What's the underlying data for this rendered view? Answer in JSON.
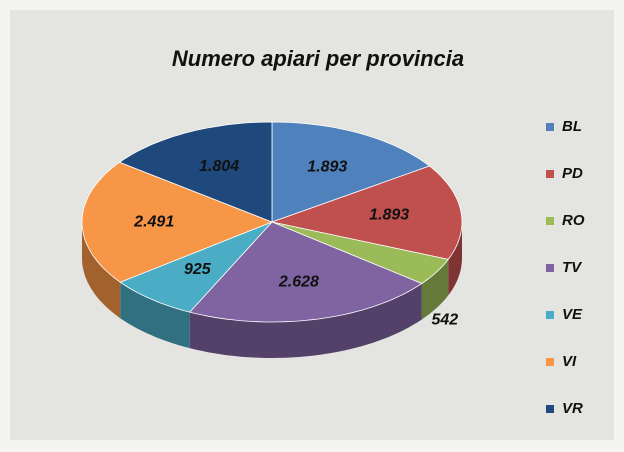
{
  "chart_data": {
    "type": "pie",
    "title": "Numero apiari per provincia",
    "categories": [
      "BL",
      "PD",
      "RO",
      "TV",
      "VE",
      "VI",
      "VR"
    ],
    "values": [
      1893,
      1893,
      542,
      2628,
      925,
      2491,
      1804
    ],
    "value_labels": [
      "1.893",
      "1.893",
      "542",
      "2.628",
      "925",
      "2.491",
      "1.804"
    ],
    "colors": [
      "#4f81bd",
      "#c0504d",
      "#9bbb59",
      "#8064a2",
      "#4bacc6",
      "#f79646",
      "#1f497d"
    ],
    "legend": "right"
  }
}
